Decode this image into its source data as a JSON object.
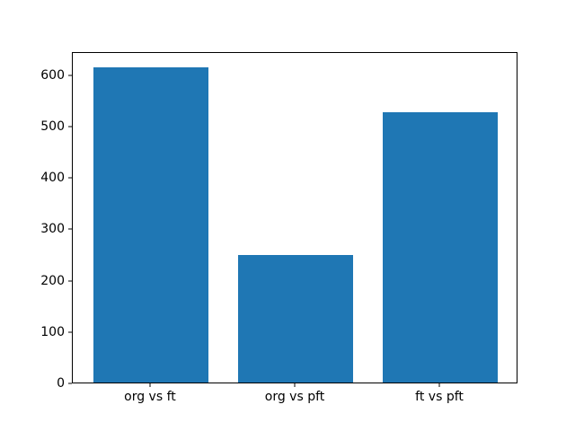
{
  "chart_data": {
    "type": "bar",
    "categories": [
      "org vs ft",
      "org vs pft",
      "ft vs pft"
    ],
    "values": [
      614,
      248,
      527
    ],
    "title": "",
    "xlabel": "",
    "ylabel": "",
    "ylim": [
      0,
      645
    ],
    "yticks": [
      0,
      100,
      200,
      300,
      400,
      500,
      600
    ],
    "bar_color": "#1f77b4",
    "axis_color": "#000000",
    "background_color": "#ffffff",
    "grid": false,
    "legend": "none"
  }
}
